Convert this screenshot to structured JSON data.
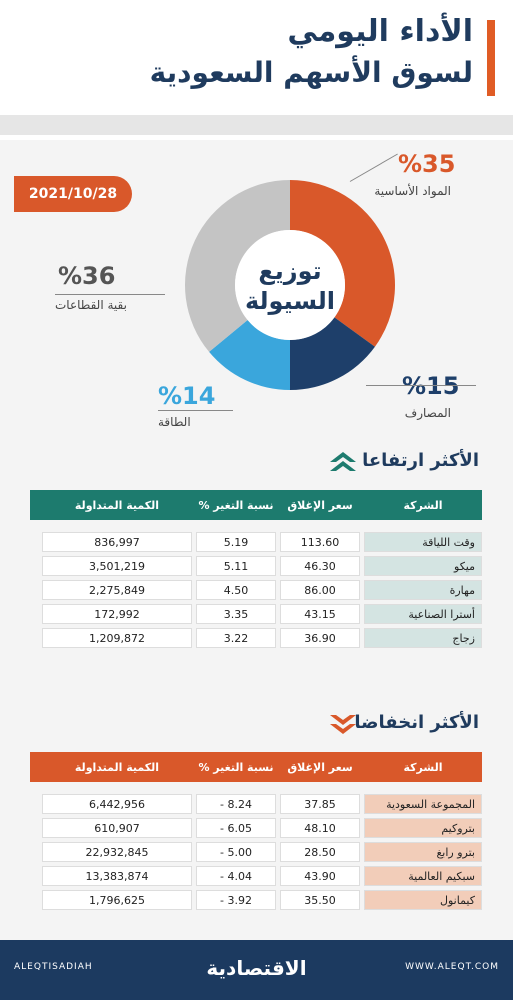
{
  "header": {
    "title_line1": "الأداء اليومي",
    "title_line2": "لسوق الأسهم السعودية"
  },
  "date": "2021/10/28",
  "chart_data": {
    "type": "pie",
    "title": "توزيع السيولة",
    "slices": [
      {
        "label": "المواد الأساسية",
        "value": 35,
        "display": "%35",
        "color": "#d9582a"
      },
      {
        "label": "المصارف",
        "value": 15,
        "display": "%15",
        "color": "#1e3f6a"
      },
      {
        "label": "الطاقة",
        "value": 14,
        "display": "%14",
        "color": "#3aa6dc"
      },
      {
        "label": "بقية القطاعات",
        "value": 36,
        "display": "%36",
        "color": "#c4c4c4"
      }
    ]
  },
  "gainers": {
    "title": "الأكثر ارتفاعا",
    "color": "#1d7b6e",
    "columns": [
      "الشركة",
      "سعر الإغلاق",
      "نسبة التغير %",
      "الكمية المتداولة"
    ],
    "rows": [
      {
        "company": "وقت اللياقة",
        "close": "113.60",
        "change": "5.19",
        "volume": "836,997"
      },
      {
        "company": "ميكو",
        "close": "46.30",
        "change": "5.11",
        "volume": "3,501,219"
      },
      {
        "company": "مهارة",
        "close": "86.00",
        "change": "4.50",
        "volume": "2,275,849"
      },
      {
        "company": "أسترا الصناعية",
        "close": "43.15",
        "change": "3.35",
        "volume": "172,992"
      },
      {
        "company": "زجاج",
        "close": "36.90",
        "change": "3.22",
        "volume": "1,209,872"
      }
    ]
  },
  "losers": {
    "title": "الأكثر انخفاضا",
    "color": "#d9582a",
    "columns": [
      "الشركة",
      "سعر الإغلاق",
      "نسبة التغير %",
      "الكمية المتداولة"
    ],
    "rows": [
      {
        "company": "المجموعة السعودية",
        "close": "37.85",
        "change": "8.24 -",
        "volume": "6,442,956"
      },
      {
        "company": "بتروكيم",
        "close": "48.10",
        "change": "6.05 -",
        "volume": "610,907"
      },
      {
        "company": "بترو رابغ",
        "close": "28.50",
        "change": "5.00 -",
        "volume": "22,932,845"
      },
      {
        "company": "سبكيم العالمية",
        "close": "43.90",
        "change": "4.04 -",
        "volume": "13,383,874"
      },
      {
        "company": "كيمانول",
        "close": "35.50",
        "change": "3.92 -",
        "volume": "1,796,625"
      }
    ]
  },
  "footer": {
    "social": "ALEQTISADIAH",
    "brand": "الاقتصادية",
    "website": "WWW.ALEQT.COM"
  }
}
